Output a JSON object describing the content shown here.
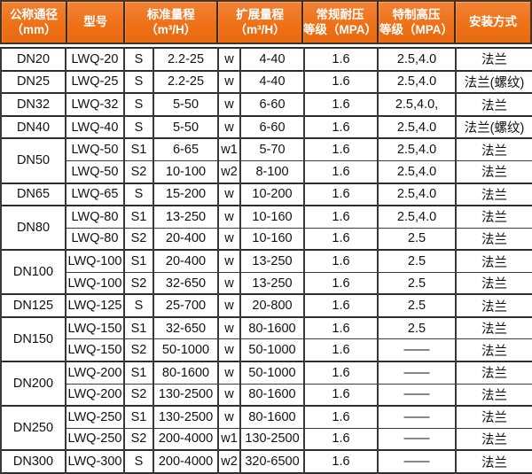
{
  "colors": {
    "header_bg": "#ee7118",
    "header_bg_light": "#f28336",
    "header_text": "#ffffff",
    "grid_line": "#333333",
    "body_text": "#111111"
  },
  "table": {
    "headers": [
      {
        "line1": "公称通径",
        "line2": "（mm）"
      },
      {
        "line1": "型号",
        "line2": ""
      },
      {
        "line1": "标准量程",
        "line2": "（m³/H）"
      },
      {
        "line1": "扩展量程",
        "line2": "（m³/H）"
      },
      {
        "line1": "常规耐压",
        "line2": "等级（MPA）"
      },
      {
        "line1": "特制高压",
        "line2": "等级（MPA）"
      },
      {
        "line1": "安装方式",
        "line2": ""
      }
    ],
    "rows": [
      {
        "dn": "DN20",
        "span": 1,
        "model": "LWQ-20",
        "s": "S",
        "std": "2.2-25",
        "w": "w",
        "ext": "4-40",
        "p": "1.6",
        "hp": "2.5,4.0",
        "install": "法兰"
      },
      {
        "dn": "DN25",
        "span": 1,
        "model": "LWQ-25",
        "s": "S",
        "std": "2.2-25",
        "w": "w",
        "ext": "4-40",
        "p": "1.6",
        "hp": "2.5,4.0",
        "install": "法兰(螺纹)"
      },
      {
        "dn": "DN32",
        "span": 1,
        "model": "LWQ-32",
        "s": "S",
        "std": "5-50",
        "w": "w",
        "ext": "6-60",
        "p": "1.6",
        "hp": "2.5,4.0,",
        "install": "法兰"
      },
      {
        "dn": "DN40",
        "span": 1,
        "model": "LWQ-40",
        "s": "S",
        "std": "5-50",
        "w": "w",
        "ext": "6-60",
        "p": "1.6",
        "hp": "2.5,4.0",
        "install": "法兰(螺纹)"
      },
      {
        "dn": "DN50",
        "span": 2,
        "model": "LWQ-50",
        "s": "S1",
        "std": "6-65",
        "w": "w1",
        "ext": "5-70",
        "p": "1.6",
        "hp": "2.5,4.0",
        "install": "法兰"
      },
      {
        "model": "LWQ-50",
        "s": "S2",
        "std": "10-100",
        "w": "w2",
        "ext": "8-100",
        "p": "1.6",
        "hp": "2.5,4.0",
        "install": "法兰"
      },
      {
        "dn": "DN65",
        "span": 1,
        "model": "LWQ-65",
        "s": "S",
        "std": "15-200",
        "w": "w",
        "ext": "10-200",
        "p": "1.6",
        "hp": "2.5,4.0",
        "install": "法兰"
      },
      {
        "dn": "DN80",
        "span": 2,
        "model": "LWQ-80",
        "s": "S1",
        "std": "13-250",
        "w": "w",
        "ext": "10-160",
        "p": "1.6",
        "hp": "2.5,4.0",
        "install": "法兰"
      },
      {
        "model": "LWQ-80",
        "s": "S2",
        "std": "20-400",
        "w": "w",
        "ext": "10-160",
        "p": "1.6",
        "hp": "2.5",
        "install": "法兰"
      },
      {
        "dn": "DN100",
        "span": 2,
        "model": "LWQ-100",
        "s": "S1",
        "std": "20-400",
        "w": "w",
        "ext": "13-250",
        "p": "1.6",
        "hp": "2.5",
        "install": "法兰"
      },
      {
        "model": "LWQ-100",
        "s": "S2",
        "std": "32-650",
        "w": "w",
        "ext": "13-250",
        "p": "1.6",
        "hp": "2.5",
        "install": "法兰"
      },
      {
        "dn": "DN125",
        "span": 1,
        "model": "LWQ-125",
        "s": "S",
        "std": "25-700",
        "w": "w",
        "ext": "20-800",
        "p": "1.6",
        "hp": "2.5",
        "install": "法兰"
      },
      {
        "dn": "DN150",
        "span": 2,
        "model": "LWQ-150",
        "s": "S1",
        "std": "32-650",
        "w": "w",
        "ext": "80-1600",
        "p": "1.6",
        "hp": "2.5",
        "install": "法兰"
      },
      {
        "model": "LWQ-150",
        "s": "S2",
        "std": "50-1000",
        "w": "w",
        "ext": "50-1000",
        "p": "1.6",
        "hp": "——",
        "install": "法兰"
      },
      {
        "dn": "DN200",
        "span": 2,
        "model": "LWQ-200",
        "s": "S1",
        "std": "80-1600",
        "w": "w",
        "ext": "50-1000",
        "p": "1.6",
        "hp": "——",
        "install": "法兰"
      },
      {
        "model": "LWQ-200",
        "s": "S2",
        "std": "130-2500",
        "w": "w",
        "ext": "80-1600",
        "p": "1.6",
        "hp": "——",
        "install": "法兰"
      },
      {
        "dn": "DN250",
        "span": 2,
        "model": "LWQ-250",
        "s": "S1",
        "std": "130-2500",
        "w": "w",
        "ext": "80-1600",
        "p": "1.6",
        "hp": "——",
        "install": "法兰"
      },
      {
        "model": "LWQ-250",
        "s": "S2",
        "std": "200-4000",
        "w": "w1",
        "ext": "130-2500",
        "p": "1.6",
        "hp": "——",
        "install": "法兰"
      },
      {
        "dn": "DN300",
        "span": 1,
        "model": "LWQ-300",
        "s": "S",
        "std": "200-4000",
        "w": "w2",
        "ext": "320-6500",
        "p": "1.6",
        "hp": "——",
        "install": "法兰"
      }
    ]
  }
}
